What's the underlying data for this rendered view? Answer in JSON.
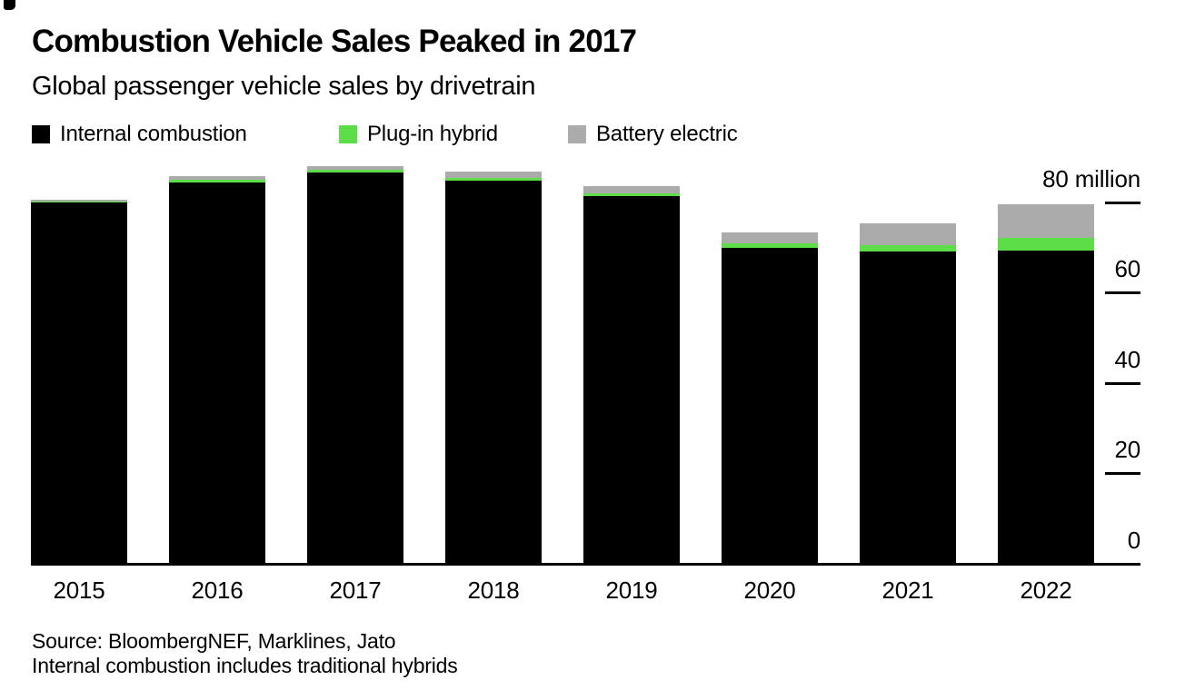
{
  "header": {
    "title": "Combustion Vehicle Sales Peaked in 2017",
    "subtitle": "Global passenger vehicle sales by drivetrain"
  },
  "colors": {
    "internal_combustion": "#000000",
    "plug_in_hybrid": "#5dde49",
    "battery_electric": "#ababab",
    "axis": "#000000",
    "background": "#ffffff"
  },
  "legend": {
    "items": [
      {
        "label": "Internal combustion",
        "color": "#000000"
      },
      {
        "label": "Plug-in hybrid",
        "color": "#5dde49"
      },
      {
        "label": "Battery electric",
        "color": "#ababab"
      }
    ]
  },
  "chart_data": {
    "type": "bar",
    "stacked": true,
    "title": "Combustion Vehicle Sales Peaked in 2017",
    "subtitle": "Global passenger vehicle sales by drivetrain",
    "unit": "million vehicles per year",
    "categories": [
      "2015",
      "2016",
      "2017",
      "2018",
      "2019",
      "2020",
      "2021",
      "2022"
    ],
    "series": [
      {
        "name": "Internal combustion",
        "color": "#000000",
        "values": [
          79.9,
          84.3,
          86.5,
          84.7,
          81.3,
          69.8,
          69.0,
          69.2
        ]
      },
      {
        "name": "Plug-in hybrid",
        "color": "#5dde49",
        "values": [
          0.2,
          0.6,
          0.6,
          0.7,
          0.7,
          1.0,
          1.4,
          2.9
        ]
      },
      {
        "name": "Battery electric",
        "color": "#ababab",
        "values": [
          0.4,
          0.8,
          0.8,
          1.5,
          1.7,
          2.4,
          4.8,
          7.5
        ]
      }
    ],
    "ylim": [
      0,
      80
    ],
    "yticks": [
      0,
      20,
      40,
      60,
      80
    ],
    "ytick_labels": [
      "0",
      "20",
      "40",
      "60",
      "80 million"
    ],
    "axis_side": "right",
    "grid": false,
    "legend_position": "top"
  },
  "footer": {
    "source": "Source: BloombergNEF, Marklines, Jato",
    "note": "Internal combustion includes traditional hybrids"
  }
}
